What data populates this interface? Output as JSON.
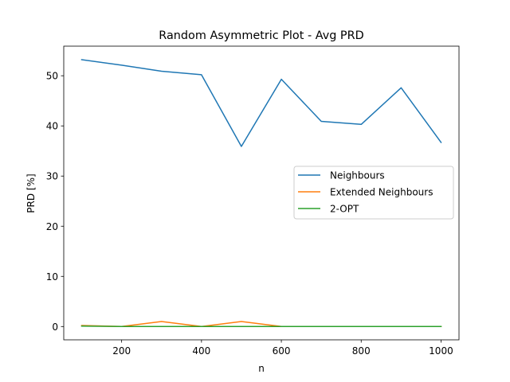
{
  "chart_data": {
    "type": "line",
    "title": "Random Asymmetric Plot - Avg PRD",
    "xlabel": "n",
    "ylabel": "PRD [%]",
    "x": [
      100,
      200,
      300,
      400,
      500,
      600,
      700,
      800,
      900,
      1000
    ],
    "xlim": [
      55,
      1045
    ],
    "ylim": [
      -2.65,
      55.9
    ],
    "xticks": [
      200,
      400,
      600,
      800,
      1000
    ],
    "yticks": [
      0,
      10,
      20,
      30,
      40,
      50
    ],
    "legend_position": "center-right",
    "series": [
      {
        "name": "Neighbours",
        "color": "#1f77b4",
        "values": [
          53.2,
          52.1,
          50.9,
          50.2,
          35.9,
          49.3,
          40.9,
          40.3,
          47.6,
          36.7
        ]
      },
      {
        "name": "Extended Neighbours",
        "color": "#ff7f0e",
        "values": [
          0.2,
          0.0,
          1.0,
          0.0,
          1.0,
          0.0,
          0.0,
          0.0,
          0.0,
          0.0
        ]
      },
      {
        "name": "2-OPT",
        "color": "#2ca02c",
        "values": [
          0.1,
          0.0,
          0.0,
          0.0,
          0.0,
          0.0,
          0.0,
          0.0,
          0.0,
          0.0
        ]
      }
    ]
  }
}
